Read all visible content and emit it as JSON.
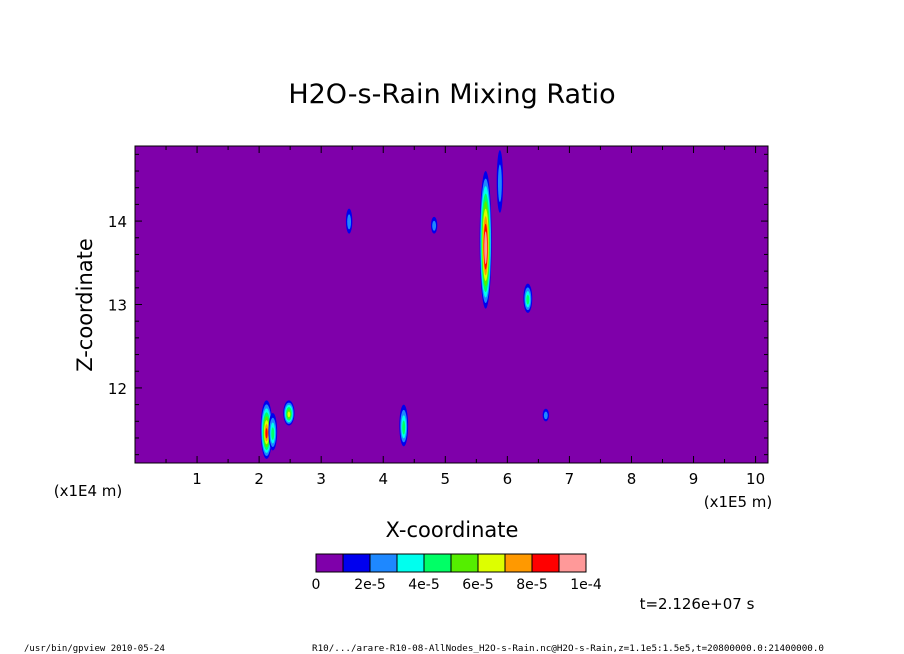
{
  "chart_data": {
    "type": "heatmap",
    "title": "H2O-s-Rain Mixing Ratio",
    "xlabel": "X-coordinate",
    "ylabel": "Z-coordinate",
    "x_scale_label": "(x1E5 m)",
    "y_scale_label": "(x1E4 m)",
    "x_ticks": [
      "1",
      "2",
      "3",
      "4",
      "5",
      "6",
      "7",
      "8",
      "9",
      "10"
    ],
    "y_ticks": [
      "12",
      "13",
      "14"
    ],
    "xlim": [
      0.0,
      10.2
    ],
    "ylim": [
      11.1,
      14.9
    ],
    "background_value": 0,
    "background_color": "#7f00aa",
    "colorbar": {
      "colors": [
        "#7f00aa",
        "#0000ee",
        "#1e88ff",
        "#00ffee",
        "#00ff66",
        "#55ee00",
        "#ddff00",
        "#ff9900",
        "#ff0000",
        "#ff9999"
      ],
      "labels": [
        "0",
        "2e-5",
        "4e-5",
        "6e-5",
        "8e-5",
        "1e-4"
      ]
    },
    "features": [
      {
        "x": 2.12,
        "z_bottom": 11.15,
        "z_top": 11.85,
        "peak": 8e-05
      },
      {
        "x": 2.22,
        "z_bottom": 11.25,
        "z_top": 11.7,
        "peak": 4e-05
      },
      {
        "x": 2.48,
        "z_bottom": 11.55,
        "z_top": 11.85,
        "peak": 6e-05
      },
      {
        "x": 4.33,
        "z_bottom": 11.3,
        "z_top": 11.8,
        "peak": 4e-05
      },
      {
        "x": 3.45,
        "z_bottom": 13.85,
        "z_top": 14.15,
        "peak": 2e-05
      },
      {
        "x": 4.82,
        "z_bottom": 13.85,
        "z_top": 14.05,
        "peak": 2e-05
      },
      {
        "x": 5.65,
        "z_bottom": 12.95,
        "z_top": 14.6,
        "peak": 0.0001
      },
      {
        "x": 5.88,
        "z_bottom": 14.1,
        "z_top": 14.85,
        "peak": 2e-05
      },
      {
        "x": 6.33,
        "z_bottom": 12.9,
        "z_top": 13.25,
        "peak": 4e-05
      },
      {
        "x": 6.62,
        "z_bottom": 11.6,
        "z_top": 11.75,
        "peak": 2e-05
      }
    ],
    "time_label": "t=2.126e+07 s"
  },
  "footer": {
    "left": "/usr/bin/gpview  2010-05-24",
    "right": "R10/.../arare-R10-08-AllNodes_H2O-s-Rain.nc@H2O-s-Rain,z=1.1e5:1.5e5,t=20800000.0:21400000.0"
  }
}
